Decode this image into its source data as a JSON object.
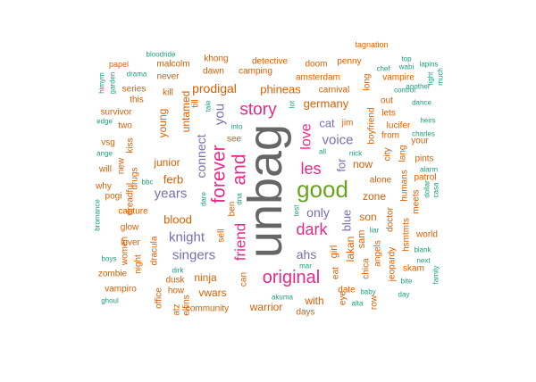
{
  "palette": {
    "orange": "#d95f02",
    "teal": "#1b9e77",
    "purple": "#7570b3",
    "magenta": "#e7298a",
    "green": "#66a61e",
    "gray": "#666666"
  },
  "words": [
    {
      "text": "unbag",
      "color": "gray"
    },
    {
      "text": "good",
      "color": "green"
    },
    {
      "text": "forever",
      "color": "magenta"
    },
    {
      "text": "and",
      "color": "magenta"
    },
    {
      "text": "story",
      "color": "magenta"
    },
    {
      "text": "original",
      "color": "magenta"
    },
    {
      "text": "les",
      "color": "magenta"
    },
    {
      "text": "dark",
      "color": "magenta"
    },
    {
      "text": "love",
      "color": "magenta"
    },
    {
      "text": "friend",
      "color": "magenta"
    },
    {
      "text": "you",
      "color": "purple"
    },
    {
      "text": "connect",
      "color": "purple"
    },
    {
      "text": "voice",
      "color": "purple"
    },
    {
      "text": "years",
      "color": "purple"
    },
    {
      "text": "knight",
      "color": "purple"
    },
    {
      "text": "singers",
      "color": "purple"
    },
    {
      "text": "only",
      "color": "purple"
    },
    {
      "text": "ahs",
      "color": "purple"
    },
    {
      "text": "for",
      "color": "purple"
    },
    {
      "text": "blue",
      "color": "purple"
    },
    {
      "text": "cat",
      "color": "purple"
    },
    {
      "text": "prodigal",
      "color": "orange"
    },
    {
      "text": "phineas",
      "color": "orange"
    },
    {
      "text": "germany",
      "color": "orange"
    },
    {
      "text": "ferb",
      "color": "orange"
    },
    {
      "text": "junior",
      "color": "orange"
    },
    {
      "text": "blood",
      "color": "orange"
    },
    {
      "text": "untamed",
      "color": "orange"
    },
    {
      "text": "young",
      "color": "orange"
    },
    {
      "text": "ninja",
      "color": "orange"
    },
    {
      "text": "vwars",
      "color": "orange"
    },
    {
      "text": "warrior",
      "color": "orange"
    },
    {
      "text": "with",
      "color": "orange"
    },
    {
      "text": "now",
      "color": "orange"
    },
    {
      "text": "zone",
      "color": "orange"
    },
    {
      "text": "son",
      "color": "orange"
    },
    {
      "text": "lakan",
      "color": "orange"
    },
    {
      "text": "girl",
      "color": "orange"
    },
    {
      "text": "sam",
      "color": "orange"
    },
    {
      "text": "jim",
      "color": "orange"
    },
    {
      "text": "community",
      "color": "orange"
    },
    {
      "text": "dusk",
      "color": "orange"
    },
    {
      "text": "how",
      "color": "orange"
    },
    {
      "text": "vampiro",
      "color": "orange"
    },
    {
      "text": "zombie",
      "color": "orange"
    },
    {
      "text": "dracula",
      "color": "orange"
    },
    {
      "text": "lover",
      "color": "orange"
    },
    {
      "text": "glow",
      "color": "orange"
    },
    {
      "text": "capture",
      "color": "orange"
    },
    {
      "text": "pogi",
      "color": "orange"
    },
    {
      "text": "why",
      "color": "orange"
    },
    {
      "text": "will",
      "color": "orange"
    },
    {
      "text": "vsg",
      "color": "orange"
    },
    {
      "text": "two",
      "color": "orange"
    },
    {
      "text": "survivor",
      "color": "orange"
    },
    {
      "text": "series",
      "color": "orange"
    },
    {
      "text": "this",
      "color": "orange"
    },
    {
      "text": "kill",
      "color": "orange"
    },
    {
      "text": "never",
      "color": "orange"
    },
    {
      "text": "malcolm",
      "color": "orange"
    },
    {
      "text": "khong",
      "color": "orange"
    },
    {
      "text": "dawn",
      "color": "orange"
    },
    {
      "text": "detective",
      "color": "orange"
    },
    {
      "text": "camping",
      "color": "orange"
    },
    {
      "text": "doom",
      "color": "orange"
    },
    {
      "text": "amsterdam",
      "color": "orange"
    },
    {
      "text": "penny",
      "color": "orange"
    },
    {
      "text": "carnival",
      "color": "orange"
    },
    {
      "text": "vampire",
      "color": "orange"
    },
    {
      "text": "lets",
      "color": "orange"
    },
    {
      "text": "lucifer",
      "color": "orange"
    },
    {
      "text": "from",
      "color": "orange"
    },
    {
      "text": "boyfriend",
      "color": "orange"
    },
    {
      "text": "out",
      "color": "orange"
    },
    {
      "text": "long",
      "color": "orange"
    },
    {
      "text": "your",
      "color": "orange"
    },
    {
      "text": "pints",
      "color": "orange"
    },
    {
      "text": "patrol",
      "color": "orange"
    },
    {
      "text": "humans",
      "color": "orange"
    },
    {
      "text": "meets",
      "color": "orange"
    },
    {
      "text": "world",
      "color": "orange"
    },
    {
      "text": "hsmtmts",
      "color": "orange"
    },
    {
      "text": "skam",
      "color": "orange"
    },
    {
      "text": "jeopardy",
      "color": "orange"
    },
    {
      "text": "angels",
      "color": "orange"
    },
    {
      "text": "doctor",
      "color": "orange"
    },
    {
      "text": "alone",
      "color": "orange"
    },
    {
      "text": "city",
      "color": "orange"
    },
    {
      "text": "lang",
      "color": "orange"
    },
    {
      "text": "chica",
      "color": "orange"
    },
    {
      "text": "date",
      "color": "orange"
    },
    {
      "text": "eat",
      "color": "orange"
    },
    {
      "text": "eye",
      "color": "orange"
    },
    {
      "text": "row",
      "color": "orange"
    },
    {
      "text": "days",
      "color": "orange"
    },
    {
      "text": "see",
      "color": "orange"
    },
    {
      "text": "can",
      "color": "orange"
    },
    {
      "text": "sell",
      "color": "orange"
    },
    {
      "text": "till",
      "color": "orange"
    },
    {
      "text": "ben",
      "color": "orange"
    },
    {
      "text": "new",
      "color": "orange"
    },
    {
      "text": "kiss",
      "color": "orange"
    },
    {
      "text": "drugs",
      "color": "orange"
    },
    {
      "text": "dreadful",
      "color": "orange"
    },
    {
      "text": "night",
      "color": "orange"
    },
    {
      "text": "women",
      "color": "orange"
    },
    {
      "text": "office",
      "color": "orange"
    },
    {
      "text": "elfins",
      "color": "orange"
    },
    {
      "text": "atz",
      "color": "orange"
    },
    {
      "text": "papel",
      "color": "orange"
    },
    {
      "text": "bloodride",
      "color": "teal"
    },
    {
      "text": "drama",
      "color": "teal"
    },
    {
      "text": "himym",
      "color": "teal"
    },
    {
      "text": "garden",
      "color": "teal"
    },
    {
      "text": "edge",
      "color": "teal"
    },
    {
      "text": "ange",
      "color": "teal"
    },
    {
      "text": "bbc",
      "color": "teal"
    },
    {
      "text": "bromance",
      "color": "teal"
    },
    {
      "text": "boys",
      "color": "teal"
    },
    {
      "text": "ghoul",
      "color": "teal"
    },
    {
      "text": "dirk",
      "color": "teal"
    },
    {
      "text": "akuma",
      "color": "teal"
    },
    {
      "text": "mar",
      "color": "teal"
    },
    {
      "text": "test",
      "color": "teal"
    },
    {
      "text": "alta",
      "color": "teal"
    },
    {
      "text": "liar",
      "color": "teal"
    },
    {
      "text": "nick",
      "color": "teal"
    },
    {
      "text": "all",
      "color": "teal"
    },
    {
      "text": "into",
      "color": "teal"
    },
    {
      "text": "tale",
      "color": "teal"
    },
    {
      "text": "dare",
      "color": "teal"
    },
    {
      "text": "dna",
      "color": "teal"
    },
    {
      "text": "lot",
      "color": "teal"
    },
    {
      "text": "chef",
      "color": "teal"
    },
    {
      "text": "wabi",
      "color": "teal"
    },
    {
      "text": "another",
      "color": "teal"
    },
    {
      "text": "control",
      "color": "teal"
    },
    {
      "text": "dance",
      "color": "teal"
    },
    {
      "text": "heirs",
      "color": "teal"
    },
    {
      "text": "charles",
      "color": "teal"
    },
    {
      "text": "alarm",
      "color": "teal"
    },
    {
      "text": "dollar",
      "color": "teal"
    },
    {
      "text": "casa",
      "color": "teal"
    },
    {
      "text": "blank",
      "color": "teal"
    },
    {
      "text": "next",
      "color": "teal"
    },
    {
      "text": "bite",
      "color": "teal"
    },
    {
      "text": "day",
      "color": "teal"
    },
    {
      "text": "family",
      "color": "teal"
    },
    {
      "text": "baby",
      "color": "teal"
    },
    {
      "text": "lapins",
      "color": "teal"
    },
    {
      "text": "light",
      "color": "teal"
    },
    {
      "text": "much",
      "color": "teal"
    },
    {
      "text": "top",
      "color": "teal"
    },
    {
      "text": "tagnation",
      "color": "orange"
    }
  ]
}
